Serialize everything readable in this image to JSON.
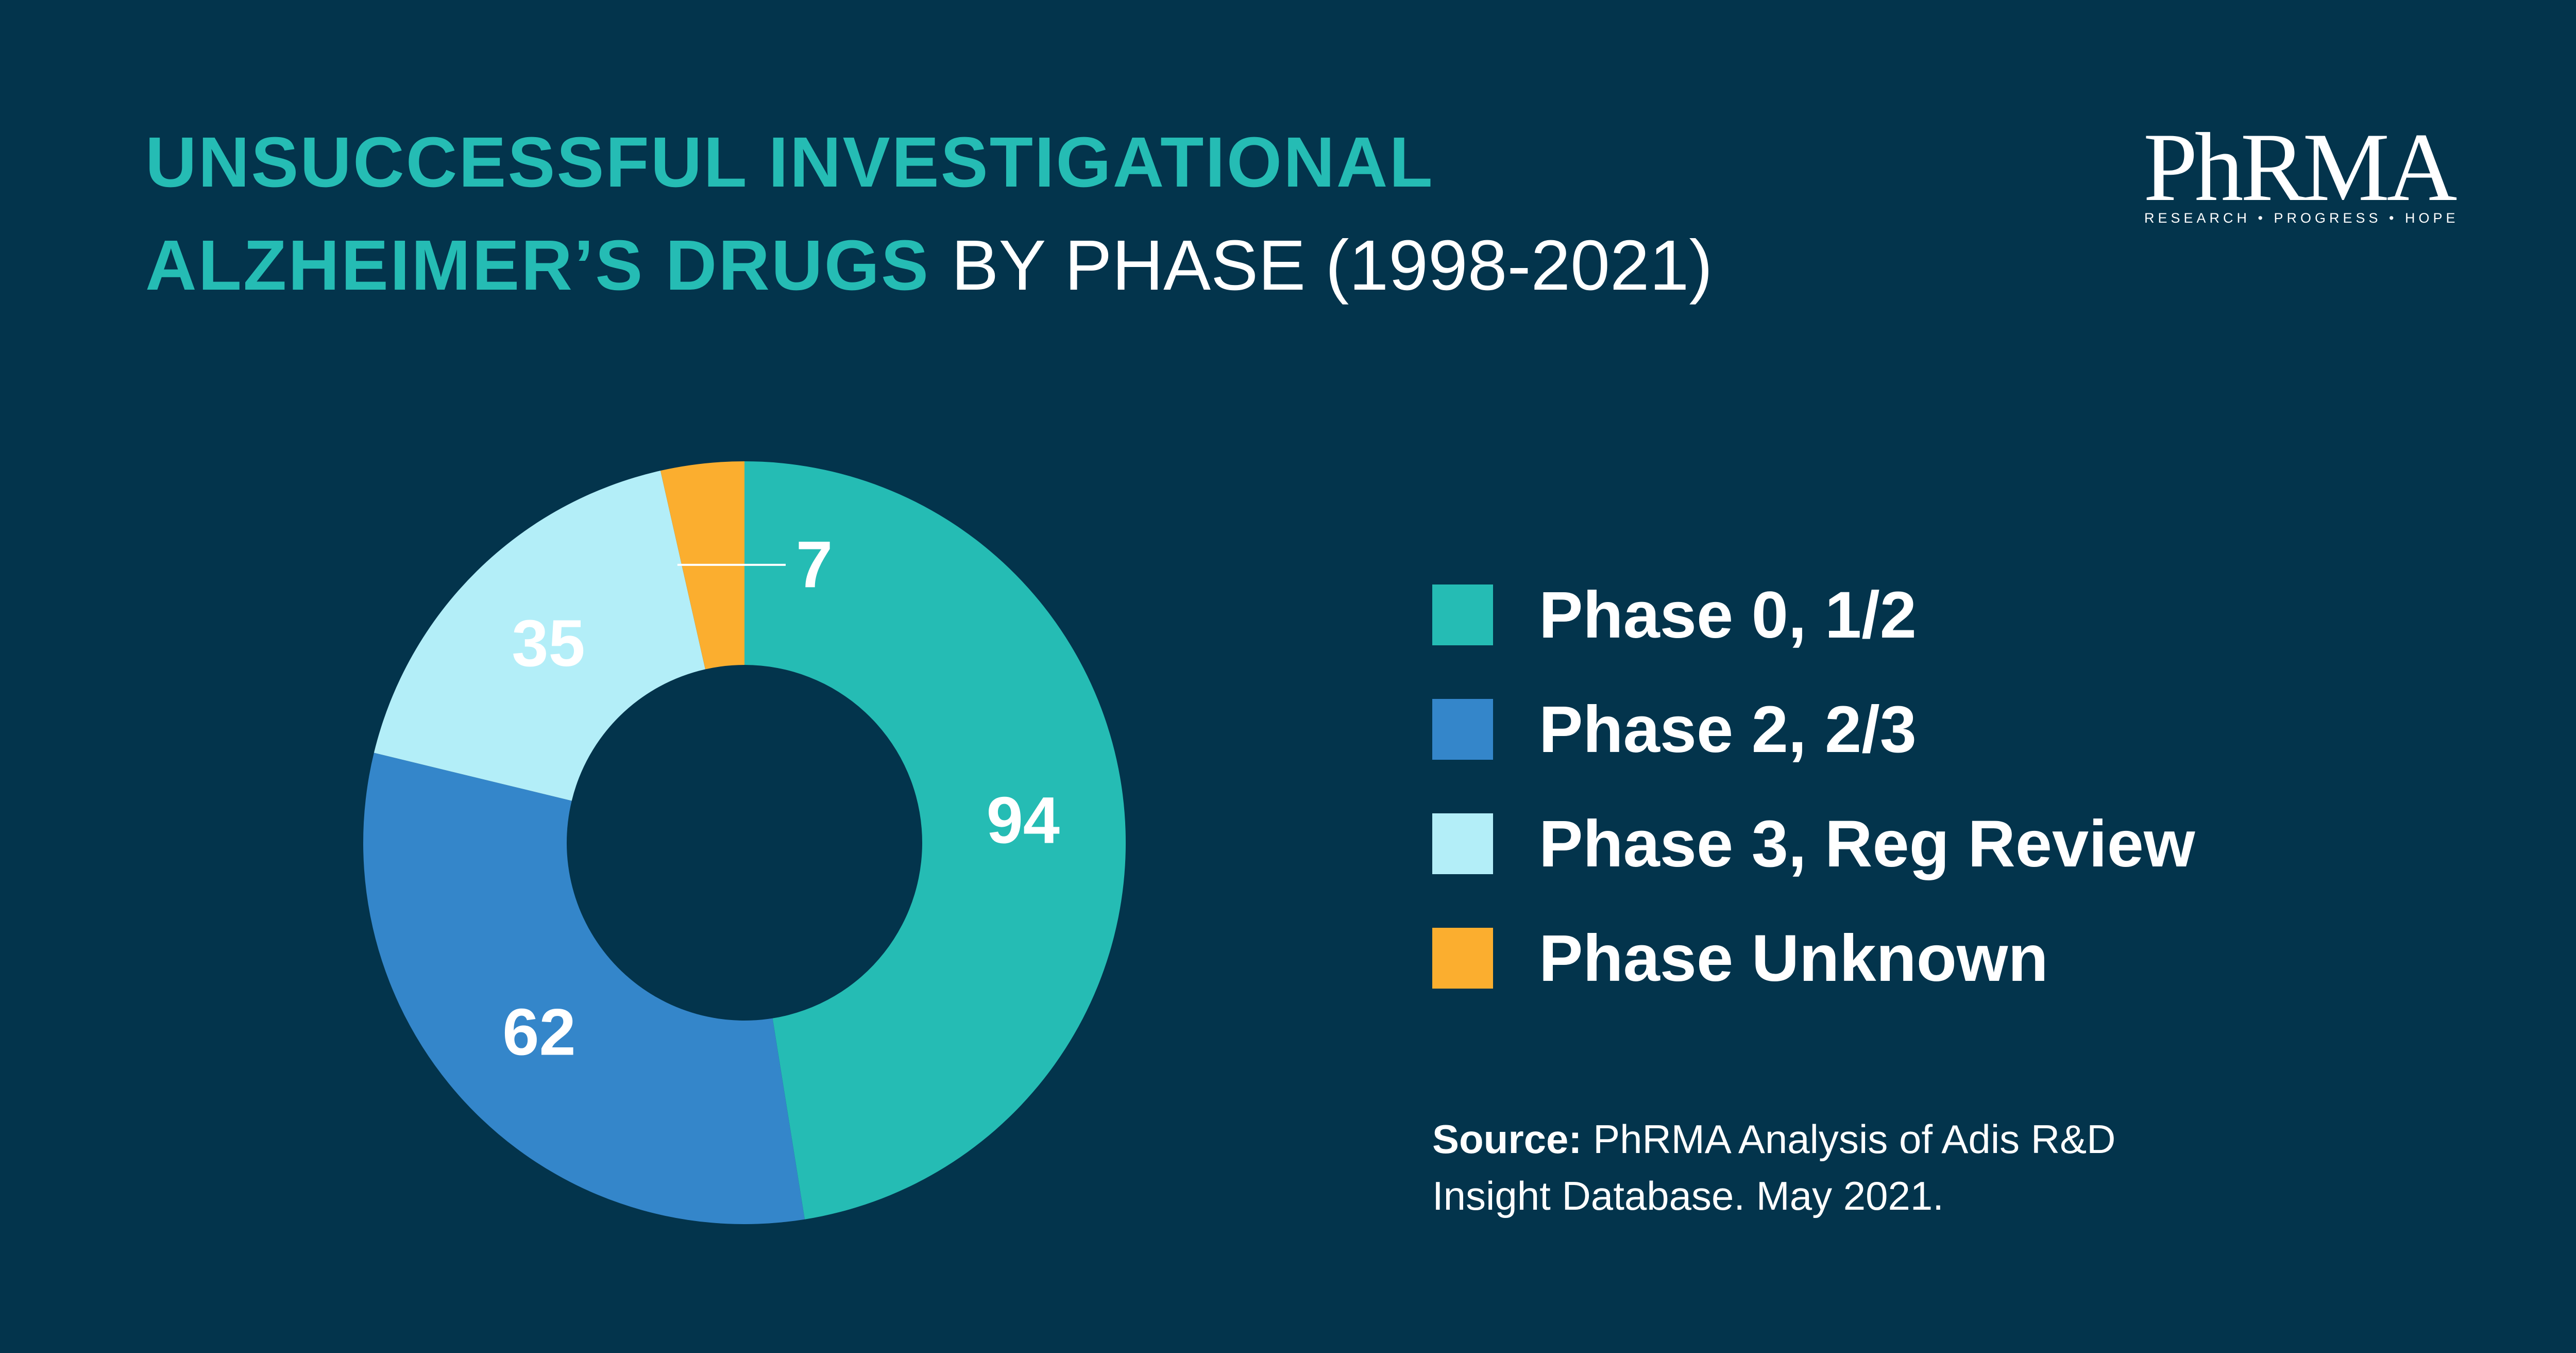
{
  "title": {
    "accent_line1": "UNSUCCESSFUL INVESTIGATIONAL",
    "accent_line2": "ALZHEIMER’S DRUGS",
    "suffix": "BY PHASE (1998-2021)"
  },
  "logo": {
    "wordmark": "PhRMA",
    "tagline": "RESEARCH • PROGRESS • HOPE"
  },
  "chart_data": {
    "type": "pie",
    "variant": "donut",
    "title": "UNSUCCESSFUL INVESTIGATIONAL ALZHEIMER’S DRUGS BY PHASE (1998-2021)",
    "categories": [
      "Phase 0, 1/2",
      "Phase 2, 2/3",
      "Phase 3, Reg Review",
      "Phase Unknown"
    ],
    "values": [
      94,
      62,
      35,
      7
    ],
    "colors": [
      "#25bcb4",
      "#3486ca",
      "#b3eef8",
      "#fbae2f"
    ],
    "legend_position": "right"
  },
  "source": {
    "lead": "Source:",
    "text": " PhRMA Analysis of Adis R&D Insight Database. May 2021."
  }
}
